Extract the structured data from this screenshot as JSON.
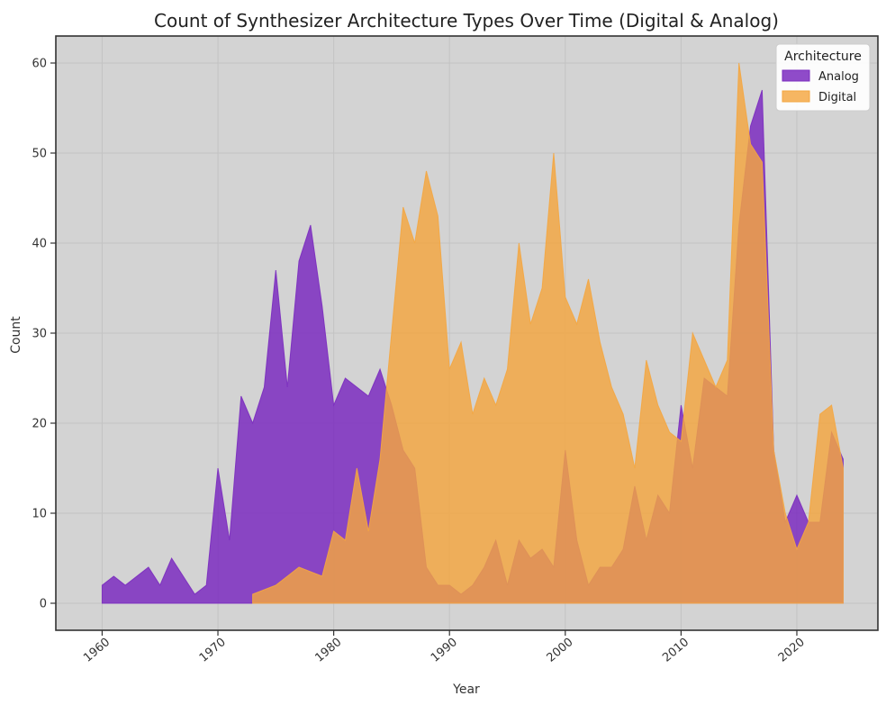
{
  "chart_data": {
    "type": "area",
    "title": "Count of Synthesizer Architecture Types Over Time (Digital & Analog)",
    "xlabel": "Year",
    "ylabel": "Count",
    "xlim": [
      1956,
      2027
    ],
    "ylim": [
      -3,
      63
    ],
    "x_ticks": [
      1960,
      1970,
      1980,
      1990,
      2000,
      2010,
      2020
    ],
    "y_ticks": [
      0,
      10,
      20,
      30,
      40,
      50,
      60
    ],
    "grid": true,
    "background_color": "#d3d3d3",
    "legend": {
      "title": "Architecture",
      "placement": "top-right"
    },
    "series": [
      {
        "name": "Analog",
        "color": "#7b2cbf",
        "x": [
          1960,
          1961,
          1962,
          1963,
          1964,
          1965,
          1966,
          1967,
          1968,
          1969,
          1970,
          1971,
          1972,
          1973,
          1974,
          1975,
          1976,
          1977,
          1978,
          1979,
          1980,
          1981,
          1982,
          1983,
          1984,
          1985,
          1986,
          1987,
          1988,
          1989,
          1990,
          1991,
          1992,
          1993,
          1994,
          1995,
          1996,
          1997,
          1998,
          1999,
          2000,
          2001,
          2002,
          2003,
          2004,
          2005,
          2006,
          2007,
          2008,
          2009,
          2010,
          2011,
          2012,
          2013,
          2014,
          2015,
          2016,
          2017,
          2018,
          2019,
          2020,
          2021,
          2022,
          2023,
          2024
        ],
        "values": [
          2,
          3,
          2,
          3,
          4,
          2,
          5,
          3,
          1,
          2,
          15,
          7,
          23,
          20,
          24,
          37,
          24,
          38,
          42,
          33,
          22,
          25,
          24,
          23,
          26,
          22,
          17,
          15,
          4,
          2,
          2,
          1,
          2,
          4,
          7,
          2,
          7,
          5,
          6,
          4,
          17,
          7,
          2,
          4,
          4,
          6,
          13,
          7,
          12,
          10,
          22,
          15,
          25,
          24,
          23,
          42,
          53,
          57,
          17,
          9,
          12,
          9,
          9,
          19,
          16
        ]
      },
      {
        "name": "Digital",
        "color": "#f4a640",
        "x": [
          1973,
          1974,
          1975,
          1976,
          1977,
          1978,
          1979,
          1980,
          1981,
          1982,
          1983,
          1984,
          1985,
          1986,
          1987,
          1988,
          1989,
          1990,
          1991,
          1992,
          1993,
          1994,
          1995,
          1996,
          1997,
          1998,
          1999,
          2000,
          2001,
          2002,
          2003,
          2004,
          2005,
          2006,
          2007,
          2008,
          2009,
          2010,
          2011,
          2012,
          2013,
          2014,
          2015,
          2016,
          2017,
          2018,
          2019,
          2020,
          2021,
          2022,
          2023,
          2024
        ],
        "values": [
          1,
          1.5,
          2,
          3,
          4,
          3.5,
          3,
          8,
          7,
          15,
          8,
          16,
          30,
          44,
          40,
          48,
          43,
          26,
          29,
          21,
          25,
          22,
          26,
          40,
          31,
          35,
          50,
          34,
          31,
          36,
          29,
          24,
          21,
          15,
          27,
          22,
          19,
          18,
          30,
          27,
          24,
          27,
          60,
          51,
          49,
          17,
          10,
          6,
          9,
          21,
          22,
          15
        ]
      }
    ]
  }
}
